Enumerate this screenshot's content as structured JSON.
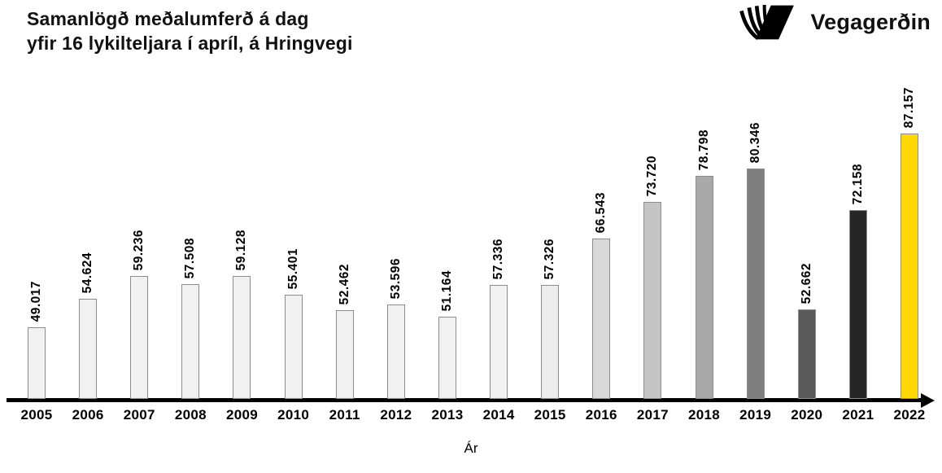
{
  "header": {
    "title_line1": "Samanlögð meðalumferð á dag",
    "title_line2": "yfir 16 lykilteljara í apríl, á Hringvegi",
    "logo_text": "Vegagerðin"
  },
  "chart_data": {
    "type": "bar",
    "title": "Samanlögð meðalumferð á dag yfir 16 lykilteljara í apríl, á Hringvegi",
    "categories": [
      "2005",
      "2006",
      "2007",
      "2008",
      "2009",
      "2010",
      "2011",
      "2012",
      "2013",
      "2014",
      "2015",
      "2016",
      "2017",
      "2018",
      "2019",
      "2020",
      "2021",
      "2022"
    ],
    "values": [
      49017,
      54624,
      59236,
      57508,
      59128,
      55401,
      52462,
      53596,
      51164,
      57336,
      57326,
      66543,
      73720,
      78798,
      80346,
      52662,
      72158,
      87157
    ],
    "display_values": [
      "49.017",
      "54.624",
      "59.236",
      "57.508",
      "59.128",
      "55.401",
      "52.462",
      "53.596",
      "51.164",
      "57.336",
      "57.326",
      "66.543",
      "73.720",
      "78.798",
      "80.346",
      "52.662",
      "72.158",
      "87.157"
    ],
    "xlabel": "Ár",
    "ylabel": "",
    "legend": false,
    "grid": false,
    "baseline_value": 35000,
    "ylim": [
      35000,
      88000
    ],
    "bar_colors": [
      "#f1f1f1",
      "#f1f1f1",
      "#f1f1f1",
      "#f1f1f1",
      "#f1f1f1",
      "#f1f1f1",
      "#f1f1f1",
      "#f1f1f1",
      "#f1f1f1",
      "#f1f1f1",
      "#ececec",
      "#d9d9d9",
      "#c5c5c5",
      "#a9a9a9",
      "#7f7f7f",
      "#595959",
      "#262626",
      "#fed800"
    ],
    "bar_border_color": "#8c8c8c",
    "highlight_color": "#fed800",
    "axis_color": "#000000",
    "label_color": "#000000"
  }
}
